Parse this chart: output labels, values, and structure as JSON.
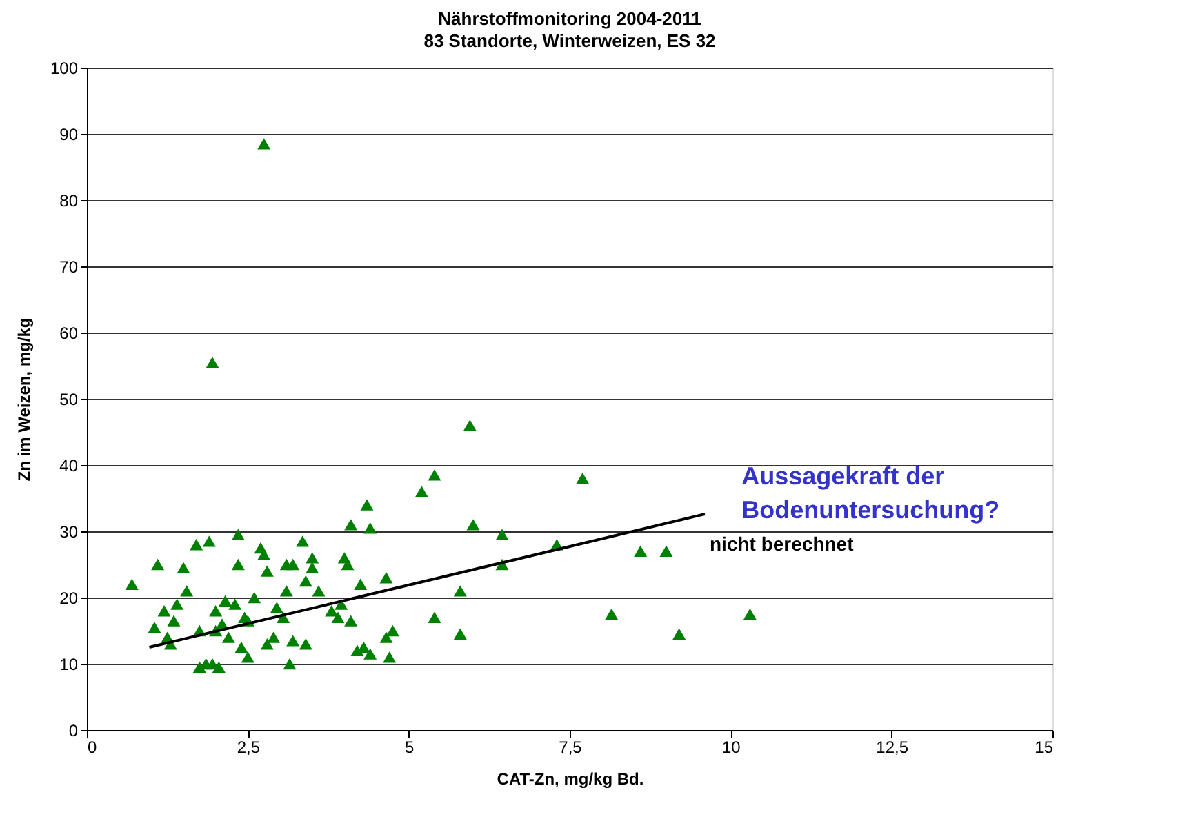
{
  "chart_data": {
    "type": "scatter",
    "title": "Nährstoffmonitoring 2004-2011",
    "subtitle": "83 Standorte, Winterweizen, ES 32",
    "xlabel": "CAT-Zn, mg/kg Bd.",
    "ylabel": "Zn im Weizen, mg/kg",
    "xlim": [
      0,
      15
    ],
    "xticks": [
      0,
      {
        "value": 2.5,
        "label": "2,5"
      },
      5,
      {
        "value": 7.5,
        "label": "7,5"
      },
      10,
      {
        "value": 12.5,
        "label": "12,5"
      },
      15
    ],
    "ylim": [
      0,
      100
    ],
    "yticks": [
      0,
      10,
      20,
      30,
      40,
      50,
      60,
      70,
      80,
      90,
      100
    ],
    "grid": "y",
    "legend": false,
    "series": [
      {
        "type": "scatter",
        "color": "#008000",
        "marker": "triangle",
        "x": [
          0.7,
          1.05,
          1.1,
          1.2,
          1.25,
          1.3,
          1.35,
          1.4,
          1.5,
          1.55,
          1.7,
          1.75,
          1.75,
          1.85,
          1.9,
          1.95,
          1.95,
          2.0,
          2.0,
          2.05,
          2.1,
          2.15,
          2.2,
          2.3,
          2.35,
          2.35,
          2.4,
          2.45,
          2.5,
          2.5,
          2.6,
          2.7,
          2.75,
          2.75,
          2.8,
          2.8,
          2.9,
          2.95,
          3.05,
          3.1,
          3.1,
          3.15,
          3.2,
          3.2,
          3.35,
          3.4,
          3.4,
          3.5,
          3.5,
          3.6,
          3.8,
          3.9,
          3.95,
          4.0,
          4.05,
          4.1,
          4.1,
          4.2,
          4.25,
          4.3,
          4.35,
          4.4,
          4.4,
          4.65,
          4.65,
          4.7,
          4.75,
          5.2,
          5.4,
          5.4,
          5.8,
          5.8,
          5.95,
          6.0,
          6.45,
          6.45,
          7.3,
          7.7,
          8.15,
          8.6,
          9.0,
          9.2,
          10.3
        ],
        "values": [
          22,
          15.5,
          25,
          18,
          14,
          13,
          16.5,
          19,
          24.5,
          21,
          28,
          15,
          9.5,
          10,
          28.5,
          10,
          55.5,
          18,
          15,
          9.5,
          16,
          19.5,
          14,
          19,
          29.5,
          25,
          12.5,
          17,
          16.5,
          11,
          20,
          27.5,
          88.5,
          26.5,
          24,
          13,
          14,
          18.5,
          17,
          21,
          25,
          10,
          25,
          13.5,
          28.5,
          22.5,
          13,
          24.5,
          26,
          21,
          18,
          17,
          19,
          26,
          25,
          31,
          16.5,
          12,
          22,
          12.5,
          34,
          30.5,
          11.5,
          23,
          14,
          11,
          15,
          36,
          38.5,
          17,
          21,
          14.5,
          46,
          31,
          29.5,
          25,
          28,
          38,
          17.5,
          27,
          27,
          14.5,
          17.5
        ]
      },
      {
        "type": "line",
        "color": "#000000",
        "marker": "none",
        "line_style": "solid",
        "x": [
          0.97,
          9.6
        ],
        "values": [
          12.5,
          32.6
        ]
      }
    ],
    "annotations": [
      "Aussagekraft der\nBodenuntersuchung?",
      "nicht berechnet"
    ]
  }
}
